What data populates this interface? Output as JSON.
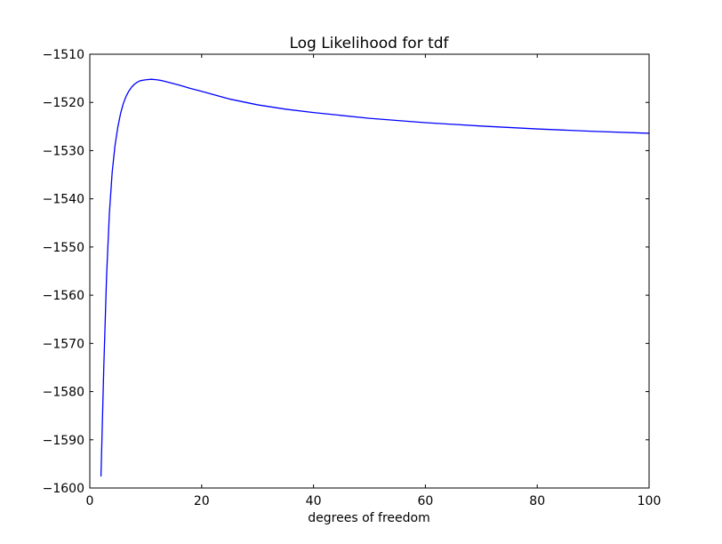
{
  "chart_data": {
    "type": "line",
    "title": "Log Likelihood for tdf",
    "xlabel": "degrees of freedom",
    "ylabel": "",
    "xlim": [
      0,
      100
    ],
    "ylim": [
      -1600,
      -1510
    ],
    "x_ticks": [
      0,
      20,
      40,
      60,
      80,
      100
    ],
    "y_ticks": [
      -1600,
      -1590,
      -1580,
      -1570,
      -1560,
      -1550,
      -1540,
      -1530,
      -1520,
      -1510
    ],
    "x_tick_labels": [
      "0",
      "20",
      "40",
      "60",
      "80",
      "100"
    ],
    "y_tick_labels": [
      "−1600",
      "−1590",
      "−1580",
      "−1570",
      "−1560",
      "−1550",
      "−1540",
      "−1530",
      "−1520",
      "−1510"
    ],
    "grid": false,
    "series": [
      {
        "color": "#0000ff",
        "x": [
          2,
          2.5,
          3,
          3.5,
          4,
          4.5,
          5,
          5.5,
          6,
          6.5,
          7,
          7.5,
          8,
          8.5,
          9,
          10,
          11,
          12,
          13,
          14,
          16,
          18,
          20,
          25,
          30,
          35,
          40,
          50,
          60,
          70,
          80,
          90,
          100
        ],
        "y": [
          -1597.5,
          -1575,
          -1556,
          -1543,
          -1534.5,
          -1529,
          -1525.2,
          -1522.3,
          -1520.2,
          -1518.7,
          -1517.6,
          -1516.8,
          -1516.2,
          -1515.8,
          -1515.5,
          -1515.3,
          -1515.2,
          -1515.3,
          -1515.5,
          -1515.8,
          -1516.4,
          -1517.1,
          -1517.7,
          -1519.3,
          -1520.5,
          -1521.4,
          -1522.1,
          -1523.3,
          -1524.2,
          -1524.9,
          -1525.5,
          -1526,
          -1526.4
        ]
      }
    ]
  }
}
